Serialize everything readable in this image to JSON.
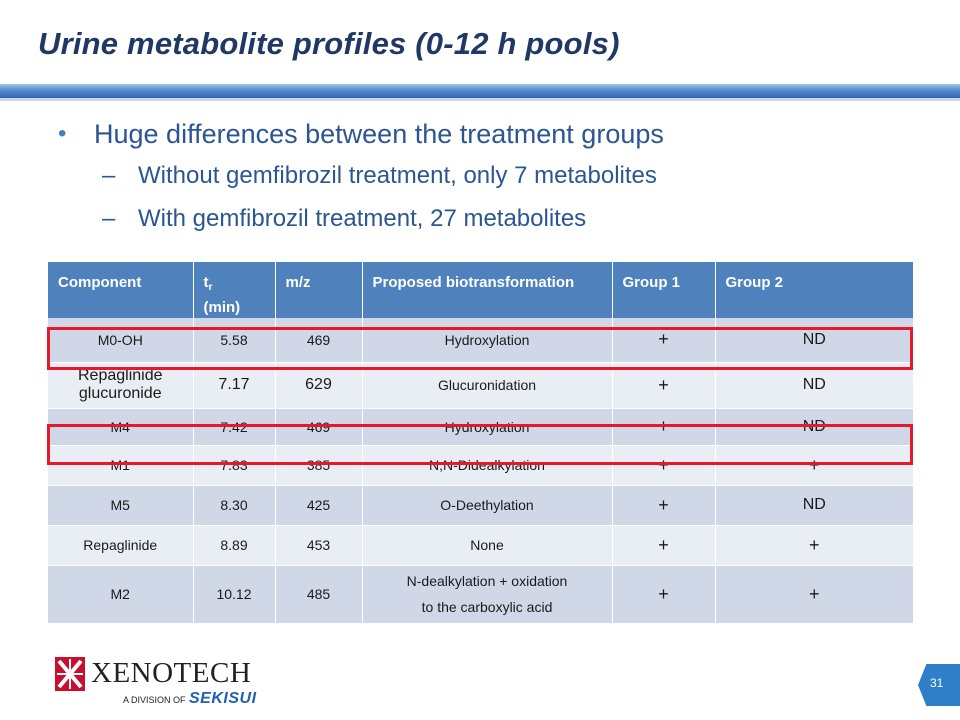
{
  "title": "Urine metabolite profiles (0-12 h pools)",
  "bullets": {
    "main": "Huge differences between the treatment groups",
    "sub1": "Without gemfibrozil treatment, only 7 metabolites",
    "sub2": "With gemfibrozil treatment,  27 metabolites",
    "bullet_char": "•",
    "dash_char": "–"
  },
  "table": {
    "headers": {
      "component": "Component",
      "tr_t": "t",
      "tr_sub": "r",
      "tr_unit": "(min)",
      "mz": "m/z",
      "bio": "Proposed biotransformation",
      "g1": "Group 1",
      "g2": "Group 2"
    },
    "rows": [
      {
        "component": "M0-OH",
        "tr": "5.58",
        "mz": "469",
        "bio": "Hydroxylation",
        "g1": "+",
        "g2": "ND"
      },
      {
        "component": "Repaglinide glucuronide",
        "tr": "7.17",
        "mz": "629",
        "bio": "Glucuronidation",
        "g1": "+",
        "g2": "ND"
      },
      {
        "component": "M4",
        "tr": "7.42",
        "mz": "469",
        "bio": "Hydroxylation",
        "g1": "+",
        "g2": "ND"
      },
      {
        "component": "M1",
        "tr": "7.83",
        "mz": "385",
        "bio": "N,N-Didealkylation",
        "g1": "+",
        "g2": "+"
      },
      {
        "component": "M5",
        "tr": "8.30",
        "mz": "425",
        "bio": "O-Deethylation",
        "g1": "+",
        "g2": "ND"
      },
      {
        "component": "Repaglinide",
        "tr": "8.89",
        "mz": "453",
        "bio": "None",
        "g1": "+",
        "g2": "+"
      },
      {
        "component": "M2",
        "tr": "10.12",
        "mz": "485",
        "bio_line1": "N-dealkylation + oxidation",
        "bio_line2": "to the carboxylic acid",
        "g1": "+",
        "g2": "+"
      }
    ],
    "highlight_color": "#e8172a",
    "header_color": "#4f81bd"
  },
  "footer": {
    "logo_main": "XENOTECH",
    "logo_division": "A DIVISION OF",
    "logo_parent": "SEKISUI",
    "page_number": "31"
  }
}
